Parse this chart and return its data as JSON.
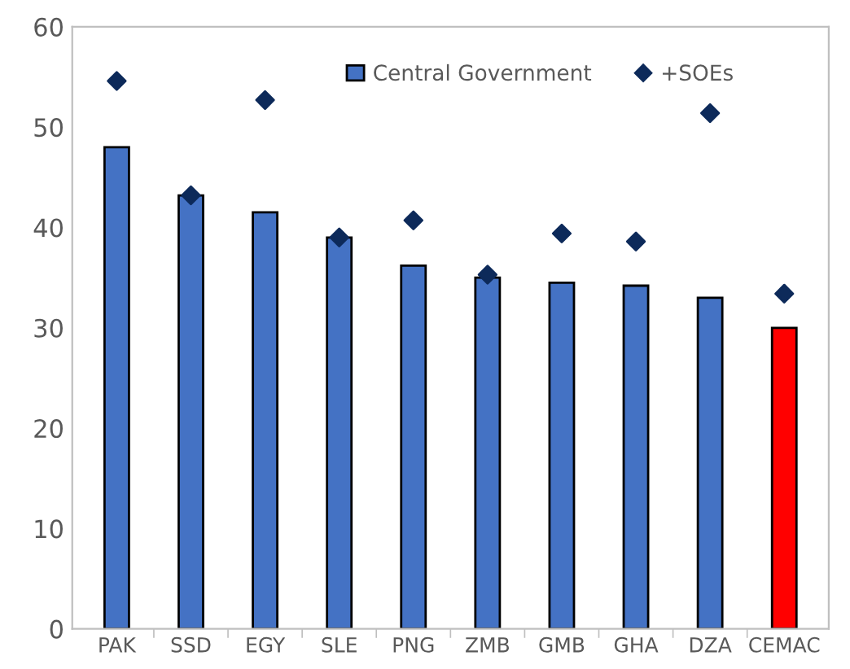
{
  "chart_data": {
    "type": "bar",
    "categories": [
      "PAK",
      "SSD",
      "EGY",
      "SLE",
      "PNG",
      "ZMB",
      "GMB",
      "GHA",
      "DZA",
      "CEMAC"
    ],
    "series": [
      {
        "name": "Central Government",
        "color": "#4472c4",
        "colors": [
          "#4472c4",
          "#4472c4",
          "#4472c4",
          "#4472c4",
          "#4472c4",
          "#4472c4",
          "#4472c4",
          "#4472c4",
          "#4472c4",
          "#ff0000"
        ],
        "values": [
          48.0,
          43.2,
          41.5,
          39.0,
          36.2,
          35.0,
          34.5,
          34.2,
          33.0,
          30.0
        ]
      },
      {
        "name": "+SOEs",
        "type": "scatter",
        "color": "#0d2a5a",
        "marker": "diamond",
        "values": [
          54.6,
          43.2,
          52.7,
          39.0,
          40.7,
          35.3,
          39.4,
          38.6,
          51.4,
          33.4
        ]
      }
    ],
    "ylim": [
      0,
      60
    ],
    "yticks": [
      0,
      10,
      20,
      30,
      40,
      50,
      60
    ],
    "grid": false,
    "legend": "top right"
  }
}
